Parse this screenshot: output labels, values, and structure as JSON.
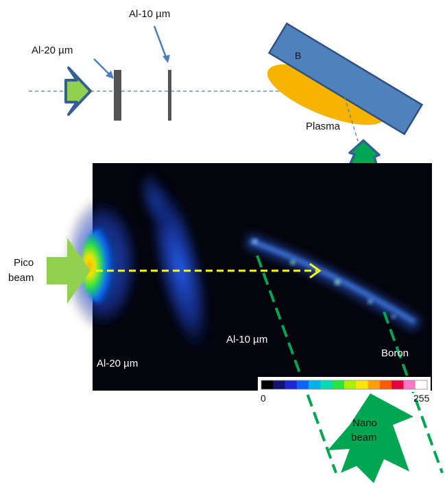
{
  "labels": {
    "al20_top": "Al-20 µm",
    "al10_top": "Al-10 µm",
    "target_b": "B",
    "plasma": "Plasma",
    "pico_line1": "Pico",
    "pico_line2": "beam",
    "al10_image": "Al-10 µm",
    "al20_image": "Al-20 µm",
    "boron": "Boron",
    "nano_line1": "Nano",
    "nano_line2": "beam"
  },
  "colorbar": {
    "min_label": "0",
    "max_label": "255",
    "colors": [
      "#000000",
      "#14146e",
      "#1e28d2",
      "#0a64ff",
      "#00b4e6",
      "#00dcb4",
      "#28e63c",
      "#aaf000",
      "#ffe600",
      "#ffa000",
      "#ff5a00",
      "#e6003c",
      "#ff78c8",
      "#ffffff"
    ]
  },
  "colors": {
    "pico_beam": "#92d050",
    "nano_beam": "#00a651",
    "target": "#4f81bd",
    "target_border": "#2f4f7f",
    "plasma": "#f6b400",
    "foil": "#555555",
    "axis_dash": "#4a7fa8",
    "beam_path": "#ffff00",
    "nano_path": "#00a651"
  }
}
